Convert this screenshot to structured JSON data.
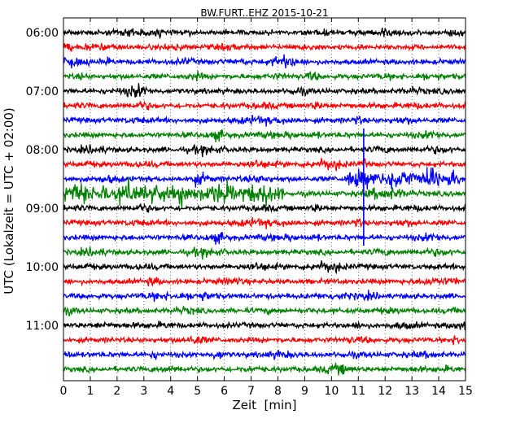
{
  "chart_data": {
    "type": "line",
    "title": "BW.FURT..EHZ 2015-10-21",
    "xlabel": "Zeit  [min]",
    "ylabel": "UTC (Lokalzeit = UTC + 02:00)",
    "xlim": [
      0,
      15
    ],
    "x_ticks": [
      "0",
      "1",
      "2",
      "3",
      "4",
      "5",
      "6",
      "7",
      "8",
      "9",
      "10",
      "11",
      "12",
      "13",
      "14",
      "15"
    ],
    "y_ticks": [
      "06:00",
      "07:00",
      "08:00",
      "09:00",
      "10:00",
      "11:00"
    ],
    "trace_start_times": [
      "06:00",
      "06:15",
      "06:30",
      "06:45",
      "07:00",
      "07:15",
      "07:30",
      "07:45",
      "08:00",
      "08:15",
      "08:30",
      "08:45",
      "09:00",
      "09:15",
      "09:30",
      "09:45",
      "10:00",
      "10:15",
      "10:30",
      "10:45",
      "11:00",
      "11:15",
      "11:30",
      "11:45"
    ],
    "trace_minutes_per_line": 15,
    "trace_colors": [
      "#000000",
      "#ff0000",
      "#0000ff",
      "#008000"
    ],
    "grid": "vertical dotted lines at each minute",
    "events": [
      {
        "trace_start": "08:30",
        "x_min": 10.5,
        "x_max": 14.8,
        "note": "strong signal, blue trace"
      },
      {
        "trace_start": "08:45",
        "x_min": 0.0,
        "x_max": 8.2,
        "note": "high amplitude bursts, green trace"
      },
      {
        "trace_start": "08:15",
        "x_min": 11.15,
        "x_max": 11.25,
        "note": "spike crossing several traces"
      }
    ]
  }
}
